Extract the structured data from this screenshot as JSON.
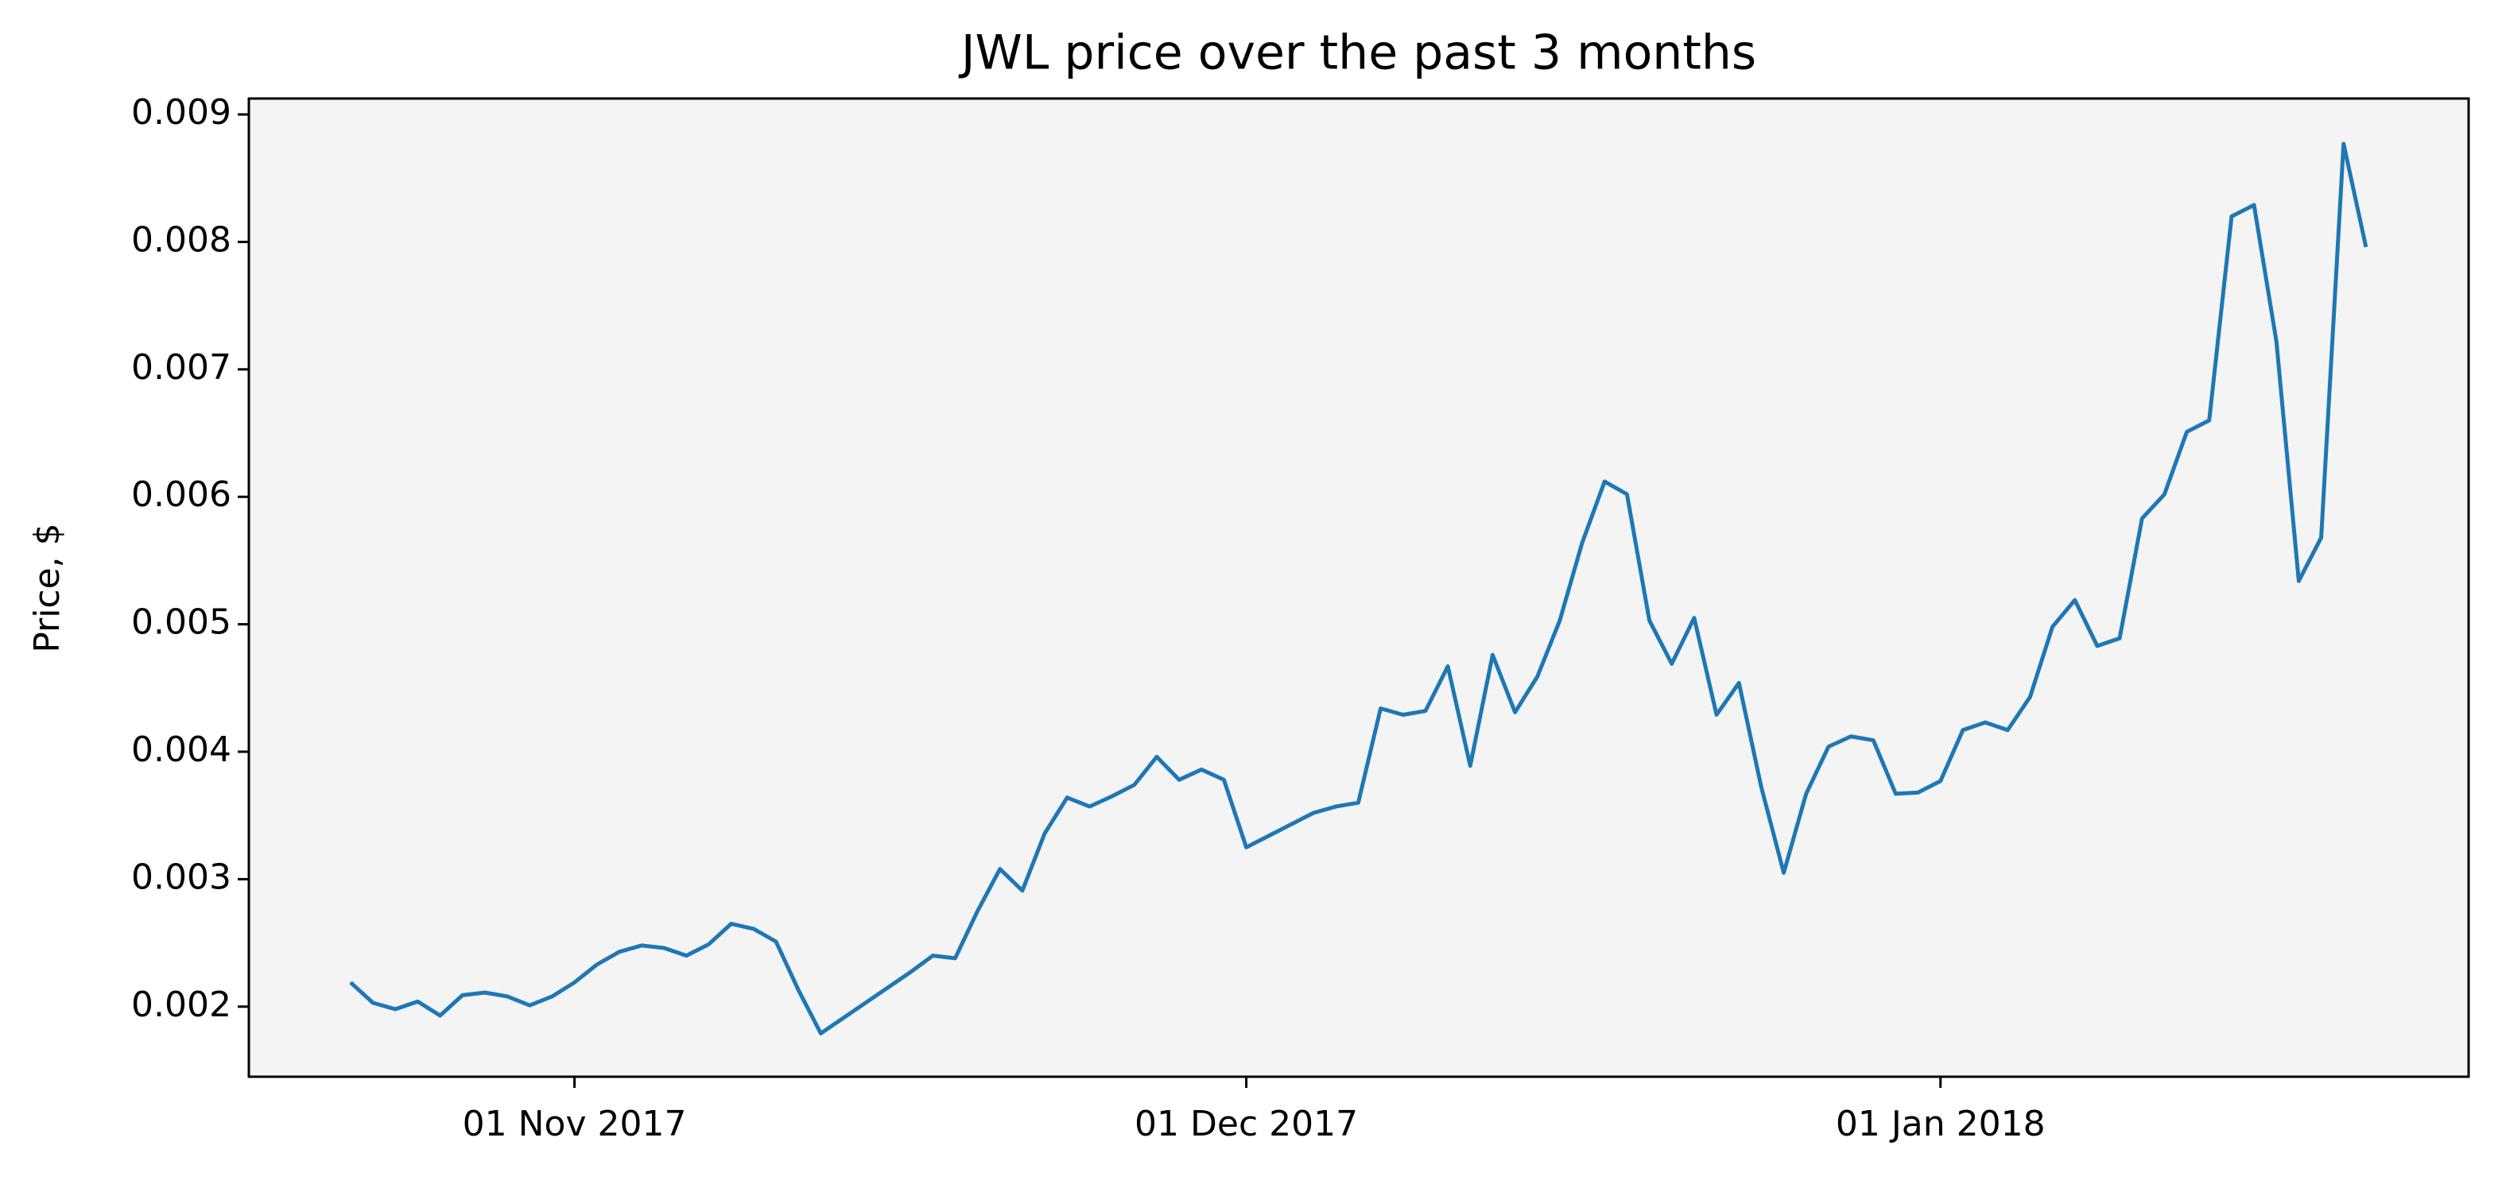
{
  "chart_data": {
    "type": "line",
    "title": "JWL price over the past 3 months",
    "y_label": "Price, $",
    "color": "#1f77b4",
    "background": "#f4f4f4",
    "x": [
      "2017-10-22",
      "2017-10-23",
      "2017-10-24",
      "2017-10-25",
      "2017-10-26",
      "2017-10-27",
      "2017-10-28",
      "2017-10-29",
      "2017-10-30",
      "2017-10-31",
      "2017-11-01",
      "2017-11-02",
      "2017-11-03",
      "2017-11-04",
      "2017-11-05",
      "2017-11-06",
      "2017-11-07",
      "2017-11-08",
      "2017-11-09",
      "2017-11-10",
      "2017-11-11",
      "2017-11-12",
      "2017-11-13",
      "2017-11-14",
      "2017-11-15",
      "2017-11-16",
      "2017-11-17",
      "2017-11-18",
      "2017-11-19",
      "2017-11-20",
      "2017-11-21",
      "2017-11-22",
      "2017-11-23",
      "2017-11-24",
      "2017-11-25",
      "2017-11-26",
      "2017-11-27",
      "2017-11-28",
      "2017-11-29",
      "2017-11-30",
      "2017-12-01",
      "2017-12-02",
      "2017-12-03",
      "2017-12-04",
      "2017-12-05",
      "2017-12-06",
      "2017-12-07",
      "2017-12-08",
      "2017-12-09",
      "2017-12-10",
      "2017-12-11",
      "2017-12-12",
      "2017-12-13",
      "2017-12-14",
      "2017-12-15",
      "2017-12-16",
      "2017-12-17",
      "2017-12-18",
      "2017-12-19",
      "2017-12-20",
      "2017-12-21",
      "2017-12-22",
      "2017-12-23",
      "2017-12-24",
      "2017-12-25",
      "2017-12-26",
      "2017-12-27",
      "2017-12-28",
      "2017-12-29",
      "2017-12-30",
      "2017-12-31",
      "2018-01-01",
      "2018-01-02",
      "2018-01-03",
      "2018-01-04",
      "2018-01-05",
      "2018-01-06",
      "2018-01-07",
      "2018-01-08",
      "2018-01-09",
      "2018-01-10",
      "2018-01-11",
      "2018-01-12",
      "2018-01-13",
      "2018-01-14",
      "2018-01-15",
      "2018-01-16",
      "2018-01-17",
      "2018-01-18",
      "2018-01-19",
      "2018-01-20"
    ],
    "values": [
      0.00219,
      0.00203,
      0.00198,
      0.00204,
      0.00193,
      0.00209,
      0.00211,
      0.00208,
      0.00201,
      0.00208,
      0.00219,
      0.00233,
      0.00243,
      0.00248,
      0.00246,
      0.0024,
      0.00249,
      0.00265,
      0.00261,
      0.00251,
      0.00213,
      0.00179,
      0.00191,
      0.00203,
      0.00215,
      0.00227,
      0.0024,
      0.00238,
      0.00275,
      0.00308,
      0.00291,
      0.00336,
      0.00364,
      0.00357,
      0.00365,
      0.00374,
      0.00396,
      0.00378,
      0.00386,
      0.00378,
      0.00325,
      0.00334,
      0.00343,
      0.00352,
      0.00357,
      0.0036,
      0.00434,
      0.00429,
      0.00432,
      0.00467,
      0.00389,
      0.00476,
      0.00431,
      0.00459,
      0.00503,
      0.00564,
      0.00612,
      0.00602,
      0.00503,
      0.00469,
      0.00505,
      0.00429,
      0.00454,
      0.00372,
      0.00305,
      0.00367,
      0.00404,
      0.00412,
      0.00409,
      0.00367,
      0.00368,
      0.00377,
      0.00417,
      0.00423,
      0.00417,
      0.00443,
      0.00498,
      0.00519,
      0.00483,
      0.00489,
      0.00583,
      0.00602,
      0.00651,
      0.0066,
      0.0082,
      0.00829,
      0.00722,
      0.00534,
      0.00568,
      0.00877,
      0.00796
    ],
    "xlim": [
      "2017-10-17T11:00Z",
      "2018-01-24T14:00Z"
    ],
    "xticks": [
      {
        "value": "2017-11-01",
        "label": "01 Nov 2017"
      },
      {
        "value": "2017-12-01",
        "label": "01 Dec 2017"
      },
      {
        "value": "2018-01-01",
        "label": "01 Jan 2018"
      }
    ],
    "ylim": [
      0.00145,
      0.009125
    ],
    "yticks": [
      0.002,
      0.003,
      0.004,
      0.005,
      0.006,
      0.007,
      0.008,
      0.009
    ],
    "grid": false
  }
}
